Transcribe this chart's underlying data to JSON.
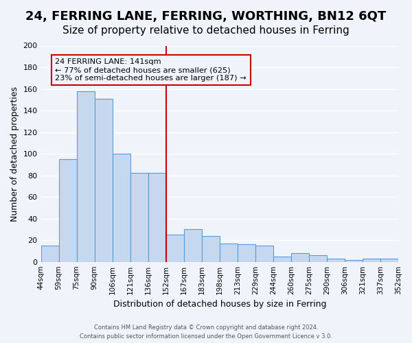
{
  "title": "24, FERRING LANE, FERRING, WORTHING, BN12 6QT",
  "subtitle": "Size of property relative to detached houses in Ferring",
  "xlabel": "Distribution of detached houses by size in Ferring",
  "ylabel": "Number of detached properties",
  "categories": [
    "44sqm",
    "59sqm",
    "75sqm",
    "90sqm",
    "106sqm",
    "121sqm",
    "136sqm",
    "152sqm",
    "167sqm",
    "183sqm",
    "198sqm",
    "213sqm",
    "229sqm",
    "244sqm",
    "260sqm",
    "275sqm",
    "290sqm",
    "306sqm",
    "321sqm",
    "337sqm",
    "352sqm"
  ],
  "values": [
    15,
    95,
    158,
    151,
    100,
    82,
    82,
    25,
    30,
    24,
    17,
    16,
    15,
    5,
    8,
    6,
    3,
    2,
    3,
    3
  ],
  "bar_color": "#c5d8f0",
  "bar_edge_color": "#5b9bd5",
  "vline_x": 6.5,
  "vline_color": "#cc0000",
  "ylim": [
    0,
    200
  ],
  "yticks": [
    0,
    20,
    40,
    60,
    80,
    100,
    120,
    140,
    160,
    180,
    200
  ],
  "annotation_title": "24 FERRING LANE: 141sqm",
  "annotation_line1": "← 77% of detached houses are smaller (625)",
  "annotation_line2": "23% of semi-detached houses are larger (187) →",
  "annotation_box_color": "#cc0000",
  "footer_line1": "Contains HM Land Registry data © Crown copyright and database right 2024.",
  "footer_line2": "Contains public sector information licensed under the Open Government Licence v 3.0.",
  "background_color": "#f0f4fa",
  "grid_color": "#ffffff",
  "title_fontsize": 13,
  "subtitle_fontsize": 11
}
